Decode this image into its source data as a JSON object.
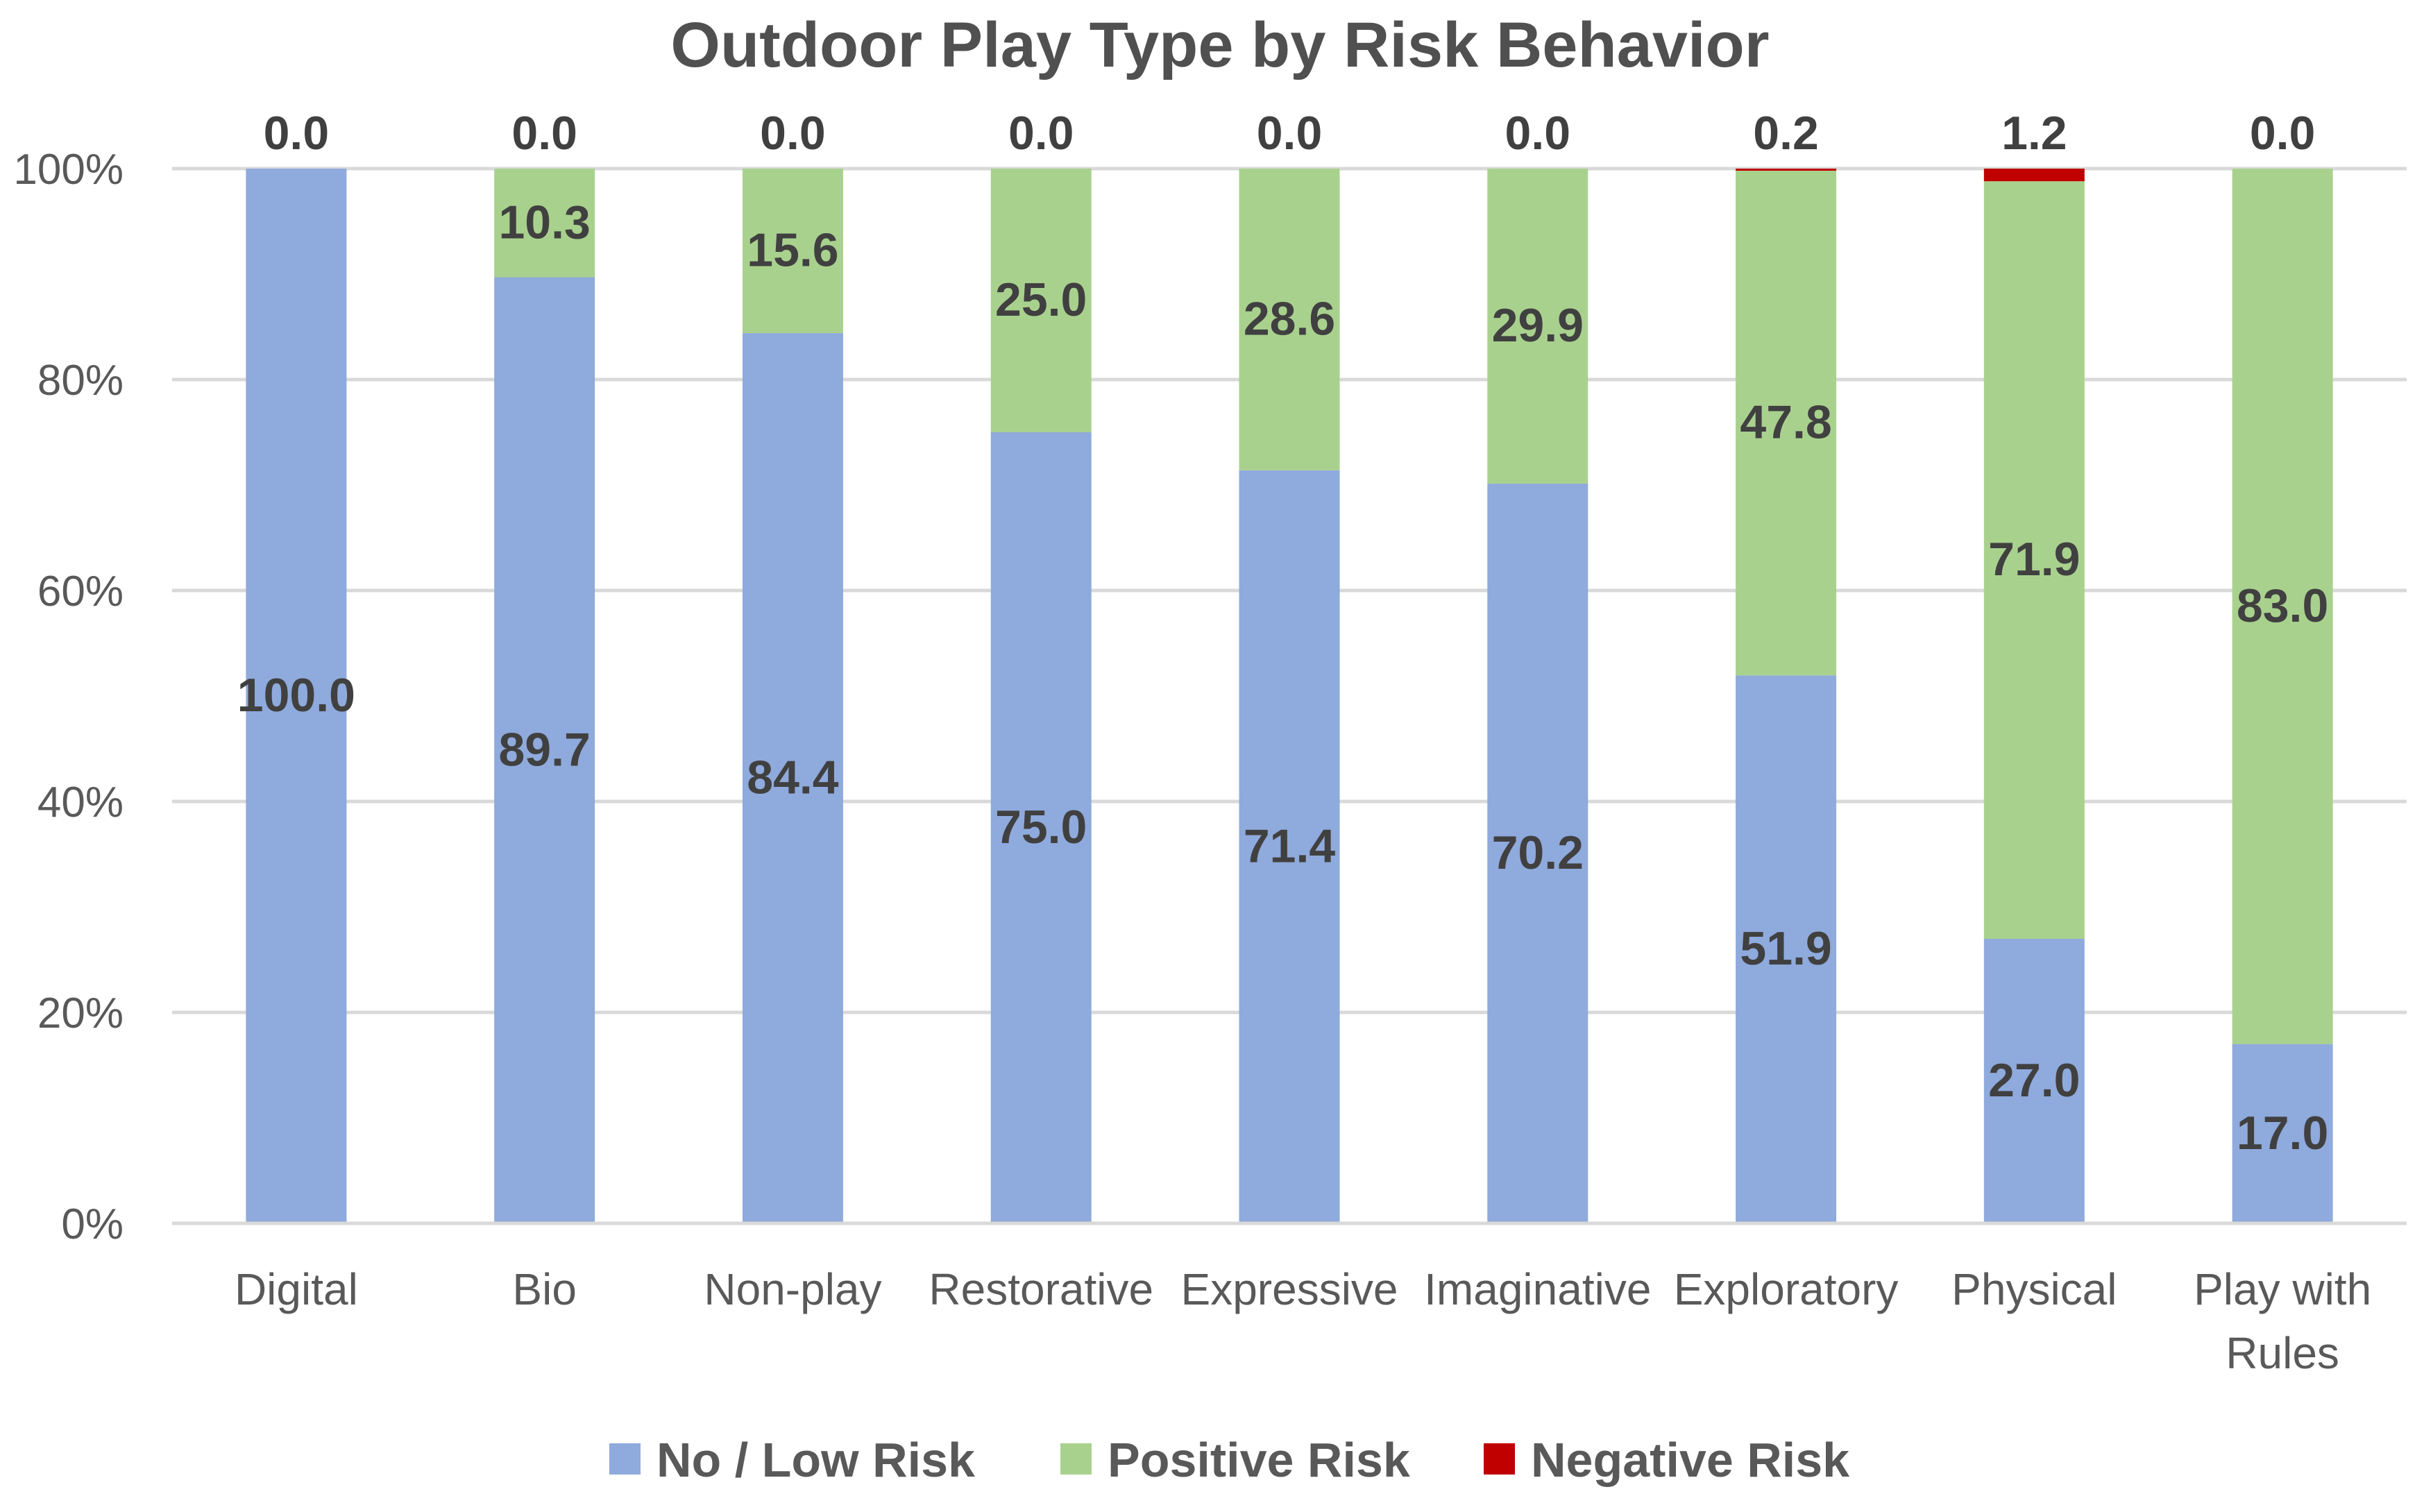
{
  "chart_data": {
    "type": "bar",
    "stacked": "percent",
    "title": "Outdoor Play Type by Risk Behavior",
    "xlabel": "",
    "ylabel": "",
    "ylim": [
      0,
      100
    ],
    "yticks": [
      "0%",
      "20%",
      "40%",
      "60%",
      "80%",
      "100%"
    ],
    "categories": [
      "Digital",
      "Bio",
      "Non-play",
      "Restorative",
      "Expressive",
      "Imaginative",
      "Exploratory",
      "Physical",
      "Play with Rules"
    ],
    "series": [
      {
        "name": "No / Low Risk",
        "color": "#8faadc",
        "values": [
          100.0,
          89.7,
          84.4,
          75.0,
          71.4,
          70.2,
          51.9,
          27.0,
          17.0
        ],
        "labels": [
          "100.0",
          "89.7",
          "84.4",
          "75.0",
          "71.4",
          "70.2",
          "51.9",
          "27.0",
          "17.0"
        ]
      },
      {
        "name": "Positive Risk",
        "color": "#a9d18e",
        "values": [
          0.0,
          10.3,
          15.6,
          25.0,
          28.6,
          29.9,
          47.8,
          71.9,
          83.0
        ],
        "labels": [
          "",
          "10.3",
          "15.6",
          "25.0",
          "28.6",
          "29.9",
          "47.8",
          "71.9",
          "83.0"
        ]
      },
      {
        "name": "Negative Risk",
        "color": "#c00000",
        "values": [
          0.0,
          0.0,
          0.0,
          0.0,
          0.0,
          0.0,
          0.2,
          1.2,
          0.0
        ],
        "labels": [
          "0.0",
          "0.0",
          "0.0",
          "0.0",
          "0.0",
          "0.0",
          "0.2",
          "1.2",
          "0.0"
        ]
      }
    ],
    "grid": true,
    "legend": "bottom"
  }
}
